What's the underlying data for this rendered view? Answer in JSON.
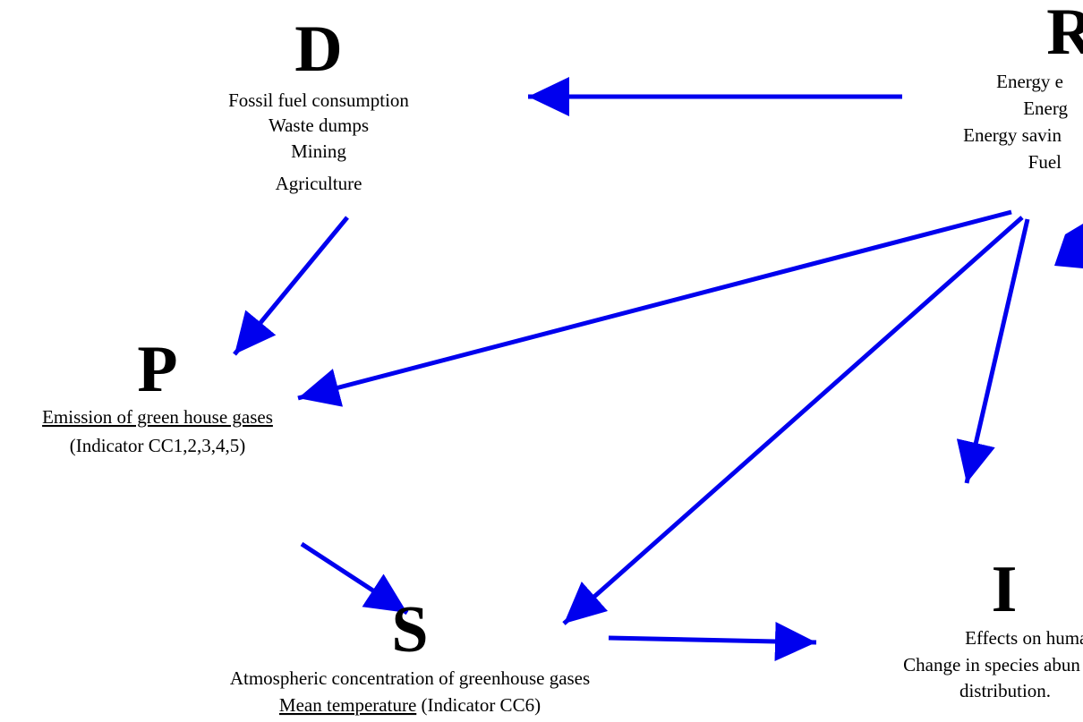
{
  "nodes": [
    {
      "letter": "D",
      "lines": [
        "Fossil fuel consumption",
        "Waste dumps",
        "Mining",
        "Agriculture"
      ]
    },
    {
      "letter": "R",
      "lines": [
        "Energy e",
        "Energ",
        "Energy savin",
        "Fuel"
      ]
    },
    {
      "letter": "P",
      "lines": [
        "Emission of green house gases",
        "(Indicator CC1,2,3,4,5)"
      ]
    },
    {
      "letter": "I",
      "lines": [
        "Effects on human",
        "Change in species abun",
        "distribution."
      ]
    },
    {
      "letter": "S",
      "lines": [
        "Atmospheric concentration of greenhouse gases"
      ],
      "underlined": "Mean temperature",
      "after": " (Indicator CC6)"
    }
  ]
}
